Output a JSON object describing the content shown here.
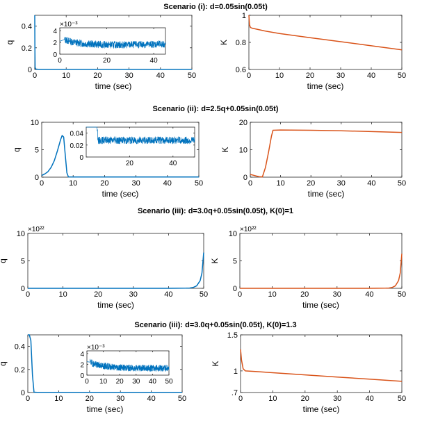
{
  "figure": {
    "titles": [
      "Scenario (i): d=0.05sin(0.05t)",
      "Scenario (ii): d=2.5q+0.05sin(0.05t)",
      "Scenario (iii): d=3.0q+0.05sin(0.05t), K(0)=1",
      "Scenario (iii): d=3.0q+0.05sin(0.05t), K(0)=1.3"
    ],
    "colors": {
      "q": "#0072BD",
      "K": "#D95319",
      "axis": "#262626"
    }
  },
  "chart_data": [
    {
      "type": "line",
      "id": "s1q",
      "xlabel": "time (sec)",
      "ylabel": "q",
      "xlim": [
        0,
        50
      ],
      "ylim": [
        0,
        0.5
      ],
      "xticks": [
        "0",
        "10",
        "20",
        "30",
        "40",
        "50"
      ],
      "yticks": [
        "0",
        "0.2",
        "0.4"
      ],
      "series": [
        {
          "x": [
            0,
            0.05,
            0.1,
            0.3,
            0.6,
            1,
            5,
            20,
            35,
            50
          ],
          "y": [
            0.5,
            0.2,
            0.02,
            0.004,
            0.003,
            0.002,
            0.002,
            0.0015,
            0.0015,
            0.0016
          ]
        }
      ],
      "inset": {
        "xlim": [
          0,
          45
        ],
        "ylim": [
          0,
          0.0045
        ],
        "xticks": [
          "0",
          "20",
          "40"
        ],
        "yticks": [
          "0",
          "2",
          "4"
        ],
        "exponent": "×10⁻³",
        "series": [
          {
            "x": [
              0,
              2,
              5,
              10,
              20,
              30,
              40,
              45
            ],
            "y": [
              0.0022,
              0.0025,
              0.0021,
              0.0018,
              0.0016,
              0.0016,
              0.0017,
              0.0017
            ],
            "noise": 0.0006
          }
        ]
      }
    },
    {
      "type": "line",
      "id": "s1K",
      "xlabel": "time (sec)",
      "ylabel": "K",
      "xlim": [
        0,
        50
      ],
      "ylim": [
        0.6,
        1.0
      ],
      "xticks": [
        "0",
        "10",
        "20",
        "30",
        "40",
        "50"
      ],
      "yticks": [
        "0.6",
        "0.8",
        "1"
      ],
      "series": [
        {
          "x": [
            0,
            0.2,
            0.5,
            1,
            5,
            10,
            20,
            30,
            40,
            50
          ],
          "y": [
            1.0,
            0.93,
            0.91,
            0.905,
            0.885,
            0.865,
            0.835,
            0.805,
            0.775,
            0.745
          ]
        }
      ]
    },
    {
      "type": "line",
      "id": "s2q",
      "xlabel": "time (sec)",
      "ylabel": "q",
      "xlim": [
        0,
        50
      ],
      "ylim": [
        0,
        10
      ],
      "xticks": [
        "0",
        "10",
        "20",
        "30",
        "40",
        "50"
      ],
      "yticks": [
        "0",
        "5",
        "10"
      ],
      "series": [
        {
          "x": [
            0,
            1,
            2,
            3,
            4,
            5,
            6,
            6.5,
            7,
            7.5,
            8,
            8.5,
            10,
            20,
            30,
            40,
            50
          ],
          "y": [
            0.3,
            0.6,
            1.0,
            1.8,
            3.0,
            4.8,
            6.8,
            7.6,
            7.3,
            4.0,
            0.8,
            0.05,
            0.03,
            0.03,
            0.03,
            0.03,
            0.03
          ]
        }
      ],
      "inset": {
        "xlim": [
          0,
          50
        ],
        "ylim": [
          0,
          0.05
        ],
        "xticks": [
          "20",
          "40"
        ],
        "yticks": [
          "0",
          "0.02",
          "0.04"
        ],
        "exponent": "",
        "series": [
          {
            "x": [
              0,
              5,
              5.5,
              10,
              20,
              30,
              40,
              50
            ],
            "y": [
              0.05,
              0.05,
              0.028,
              0.028,
              0.028,
              0.028,
              0.028,
              0.028
            ],
            "noise": 0.006
          }
        ]
      }
    },
    {
      "type": "line",
      "id": "s2K",
      "xlabel": "time (sec)",
      "ylabel": "K",
      "xlim": [
        0,
        50
      ],
      "ylim": [
        0,
        20
      ],
      "xticks": [
        "0",
        "10",
        "20",
        "30",
        "40",
        "50"
      ],
      "yticks": [
        "0",
        "10",
        "20"
      ],
      "series": [
        {
          "x": [
            0,
            1,
            2,
            3,
            4,
            5,
            6,
            7,
            7.5,
            10,
            20,
            30,
            40,
            50
          ],
          "y": [
            1.0,
            0.7,
            0.4,
            0.15,
            0.1,
            3.5,
            9,
            15,
            17.1,
            17.2,
            17.1,
            16.9,
            16.6,
            16.3
          ]
        }
      ]
    },
    {
      "type": "line",
      "id": "s3q",
      "xlabel": "time (sec)",
      "ylabel": "q",
      "xlim": [
        0,
        50
      ],
      "ylim": [
        0,
        10
      ],
      "xticks": [
        "0",
        "10",
        "20",
        "30",
        "40",
        "50"
      ],
      "yticks": [
        "0",
        "5",
        "10"
      ],
      "exponent": "×10²²",
      "series": [
        {
          "x": [
            0,
            10,
            20,
            30,
            40,
            45,
            46,
            47,
            48,
            49,
            49.5,
            50
          ],
          "y": [
            0,
            0,
            0,
            0,
            0,
            0.02,
            0.05,
            0.15,
            0.45,
            1.4,
            2.8,
            6.5
          ]
        }
      ]
    },
    {
      "type": "line",
      "id": "s3K",
      "xlabel": "time (sec)",
      "ylabel": "K",
      "xlim": [
        0,
        50
      ],
      "ylim": [
        0,
        10
      ],
      "xticks": [
        "0",
        "10",
        "20",
        "30",
        "40",
        "50"
      ],
      "yticks": [
        "0",
        "5",
        "10"
      ],
      "exponent": "×10²²",
      "series": [
        {
          "x": [
            0,
            10,
            20,
            30,
            40,
            45,
            46,
            47,
            48,
            49,
            49.5,
            50
          ],
          "y": [
            0,
            0,
            0,
            0,
            0,
            0.02,
            0.05,
            0.15,
            0.45,
            1.4,
            2.8,
            6.3
          ]
        }
      ]
    },
    {
      "type": "line",
      "id": "s4q",
      "xlabel": "time (sec)",
      "ylabel": "q",
      "xlim": [
        0,
        50
      ],
      "ylim": [
        0,
        0.5
      ],
      "xticks": [
        "0",
        "10",
        "20",
        "30",
        "40",
        "50"
      ],
      "yticks": [
        "0",
        "0.2",
        "0.4"
      ],
      "series": [
        {
          "x": [
            0,
            0.5,
            1,
            1.5,
            2,
            3,
            10,
            30,
            50
          ],
          "y": [
            0.5,
            0.5,
            0.45,
            0.15,
            0.003,
            0.002,
            0.0015,
            0.0012,
            0.0012
          ]
        }
      ],
      "inset": {
        "xlim": [
          0,
          50
        ],
        "ylim": [
          0,
          0.0045
        ],
        "xticks": [
          "0",
          "10",
          "20",
          "30",
          "40",
          "50"
        ],
        "yticks": [
          "0",
          "2",
          "4"
        ],
        "exponent": "×10⁻³",
        "series": [
          {
            "x": [
              0,
              2,
              5,
              10,
              20,
              30,
              40,
              50
            ],
            "y": [
              0.0025,
              0.0024,
              0.002,
              0.0017,
              0.0014,
              0.0013,
              0.0013,
              0.0013
            ],
            "noise": 0.0006
          }
        ]
      }
    },
    {
      "type": "line",
      "id": "s4K",
      "xlabel": "time (sec)",
      "ylabel": "K",
      "xlim": [
        0,
        50
      ],
      "ylim": [
        0.7,
        1.5
      ],
      "xticks": [
        "0",
        "10",
        "20",
        "30",
        "40",
        "50"
      ],
      "yticks": [
        ".7",
        "1",
        "1.5"
      ],
      "ytickvals": [
        0.7,
        1.0,
        1.5
      ],
      "series": [
        {
          "x": [
            0,
            0.3,
            0.8,
            1.5,
            5,
            10,
            20,
            30,
            40,
            50
          ],
          "y": [
            1.3,
            1.15,
            1.03,
            1.0,
            0.99,
            0.975,
            0.945,
            0.915,
            0.885,
            0.855
          ]
        }
      ]
    }
  ]
}
